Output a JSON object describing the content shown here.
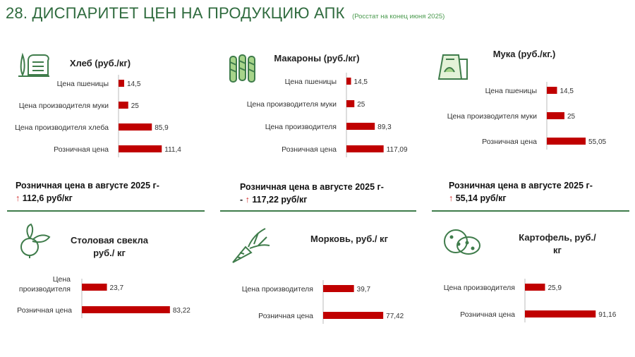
{
  "header": {
    "title": "28. ДИСПАРИТЕТ ЦЕН НА ПРОДУКЦИЮ АПК",
    "subtitle": "(Росстат на конец июня 2025)"
  },
  "colors": {
    "bar": "#c00000",
    "accent": "#3f7c4b",
    "arrow": "#d22a2a"
  },
  "panels": [
    {
      "title": "Хлеб (руб./кг)",
      "icon": "bread-icon",
      "summary_line1": "Розничная цена в августе 2025 г-",
      "summary_line2": "↑ 112,6 руб/кг"
    },
    {
      "title": "Макароны (руб./кг)",
      "icon": "pasta-icon",
      "summary_line1": "Розничная цена в августе 2025 г-",
      "summary_line2": "- ↑ 117,22 руб/кг"
    },
    {
      "title": "Мука (руб./кг.)",
      "icon": "flour-icon",
      "summary_line1": "Розничная цена в августе 2025 г-",
      "summary_line2": "↑ 55,14 руб/кг"
    },
    {
      "title": "Столовая свекла руб./ кг",
      "icon": "beet-icon"
    },
    {
      "title": "Морковь, руб./ кг",
      "icon": "carrot-icon"
    },
    {
      "title": "Картофель, руб./ кг",
      "icon": "potato-icon"
    }
  ],
  "chart_data": [
    {
      "type": "bar",
      "orientation": "horizontal",
      "title": "Хлеб (руб./кг)",
      "categories": [
        "Цена пшеницы",
        "Цена производителя муки",
        "Цена производителя хлеба",
        "Розничная цена"
      ],
      "values": [
        14.5,
        25,
        85.9,
        111.4
      ],
      "value_labels": [
        "14,5",
        "25",
        "85,9",
        "111,4"
      ]
    },
    {
      "type": "bar",
      "orientation": "horizontal",
      "title": "Макароны (руб./кг)",
      "categories": [
        "Цена пшеницы",
        "Цена производителя муки",
        "Цена производителя",
        "Розничная цена"
      ],
      "values": [
        14.5,
        25,
        89.3,
        117.09
      ],
      "value_labels": [
        "14,5",
        "25",
        "89,3",
        "117,09"
      ]
    },
    {
      "type": "bar",
      "orientation": "horizontal",
      "title": "Мука (руб./кг.)",
      "categories": [
        "Цена пшеницы",
        "Цена производителя муки",
        "Розничная цена"
      ],
      "values": [
        14.5,
        25,
        55.05
      ],
      "value_labels": [
        "14,5",
        "25",
        "55,05"
      ]
    },
    {
      "type": "bar",
      "orientation": "horizontal",
      "title": "Столовая свекла руб./ кг",
      "categories": [
        "Цена производителя",
        "Розничная цена"
      ],
      "values": [
        23.7,
        83.22
      ],
      "value_labels": [
        "23,7",
        "83,22"
      ]
    },
    {
      "type": "bar",
      "orientation": "horizontal",
      "title": "Морковь, руб./ кг",
      "categories": [
        "Цена производителя",
        "Розничная цена"
      ],
      "values": [
        39.7,
        77.42
      ],
      "value_labels": [
        "39,7",
        "77,42"
      ]
    },
    {
      "type": "bar",
      "orientation": "horizontal",
      "title": "Картофель, руб./ кг",
      "categories": [
        "Цена производителя",
        "Розничная цена"
      ],
      "values": [
        25.9,
        91.16
      ],
      "value_labels": [
        "25,9",
        "91,16"
      ]
    }
  ]
}
